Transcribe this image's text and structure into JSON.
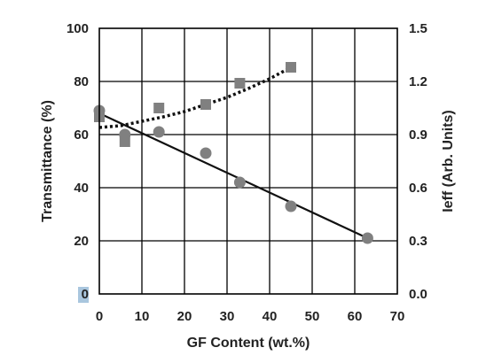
{
  "chart_data": {
    "type": "scatter",
    "xlabel": "GF Content (wt.%)",
    "ylabel_left": "Transmittance (%)",
    "ylabel_right": "Ieff (Arb. Units)",
    "x_ticks": [
      "0",
      "10",
      "20",
      "30",
      "40",
      "50",
      "60",
      "70"
    ],
    "y_left_ticks": [
      "0",
      "20",
      "40",
      "60",
      "80",
      "100"
    ],
    "y_right_ticks": [
      "0.0",
      "0.3",
      "0.6",
      "0.9",
      "1.2",
      "1.5"
    ],
    "xlim": [
      0,
      70
    ],
    "ylim_left": [
      0,
      100
    ],
    "ylim_right": [
      0,
      1.5
    ],
    "grid": true,
    "legend": "none",
    "series": [
      {
        "axis": "left",
        "marker": "circle",
        "color": "#808080",
        "points": [
          [
            0,
            69
          ],
          [
            6,
            60
          ],
          [
            14,
            61
          ],
          [
            25,
            53
          ],
          [
            33,
            42
          ],
          [
            45,
            33
          ],
          [
            63,
            21
          ]
        ]
      },
      {
        "axis": "right",
        "marker": "square",
        "color": "#808080",
        "points": [
          [
            0,
            1.0
          ],
          [
            6,
            0.86
          ],
          [
            14,
            1.05
          ],
          [
            25,
            1.07
          ],
          [
            33,
            1.19
          ],
          [
            45,
            1.28
          ]
        ]
      }
    ],
    "fits": [
      {
        "axis": "left",
        "style": "solid",
        "color": "#111111",
        "points": [
          [
            0,
            68
          ],
          [
            63,
            21
          ]
        ]
      },
      {
        "axis": "right",
        "style": "dotted",
        "color": "#111111",
        "points": [
          [
            0,
            0.94
          ],
          [
            5,
            0.95
          ],
          [
            10,
            0.975
          ],
          [
            15,
            1.0
          ],
          [
            20,
            1.03
          ],
          [
            25,
            1.07
          ],
          [
            30,
            1.11
          ],
          [
            35,
            1.16
          ],
          [
            40,
            1.215
          ],
          [
            45,
            1.28
          ]
        ]
      }
    ]
  }
}
